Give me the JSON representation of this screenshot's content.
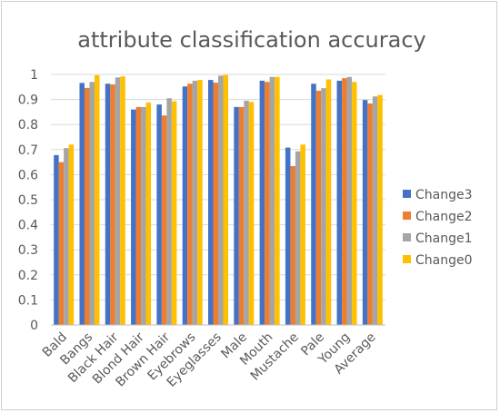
{
  "chart_data": {
    "type": "bar",
    "title": "attribute classification accuracy",
    "xlabel": "",
    "ylabel": "",
    "ylim": [
      0,
      1
    ],
    "yticks": [
      "0",
      "0.1",
      "0.2",
      "0.3",
      "0.4",
      "0.5",
      "0.6",
      "0.7",
      "0.8",
      "0.9",
      "1"
    ],
    "grid": true,
    "legend_position": "right",
    "categories": [
      "Bald",
      "Bangs",
      "Black Hair",
      "Blond Hair",
      "Brown Hair",
      "Eyebrows",
      "Eyeglasses",
      "Male",
      "Mouth",
      "Mustache",
      "Pale",
      "Young",
      "Average"
    ],
    "series": [
      {
        "name": "Change3",
        "color": "#4472c4",
        "values": [
          0.678,
          0.966,
          0.963,
          0.86,
          0.88,
          0.952,
          0.978,
          0.87,
          0.975,
          0.708,
          0.963,
          0.975,
          0.898
        ]
      },
      {
        "name": "Change2",
        "color": "#ed7d31",
        "values": [
          0.65,
          0.946,
          0.96,
          0.87,
          0.836,
          0.963,
          0.967,
          0.87,
          0.97,
          0.634,
          0.935,
          0.985,
          0.884
        ]
      },
      {
        "name": "Change1",
        "color": "#a5a5a5",
        "values": [
          0.706,
          0.97,
          0.988,
          0.87,
          0.905,
          0.975,
          0.995,
          0.895,
          0.99,
          0.693,
          0.945,
          0.99,
          0.912
        ]
      },
      {
        "name": "Change0",
        "color": "#ffc000",
        "values": [
          0.72,
          0.997,
          0.992,
          0.888,
          0.893,
          0.978,
          0.998,
          0.89,
          0.99,
          0.72,
          0.98,
          0.97,
          0.918
        ]
      }
    ]
  }
}
